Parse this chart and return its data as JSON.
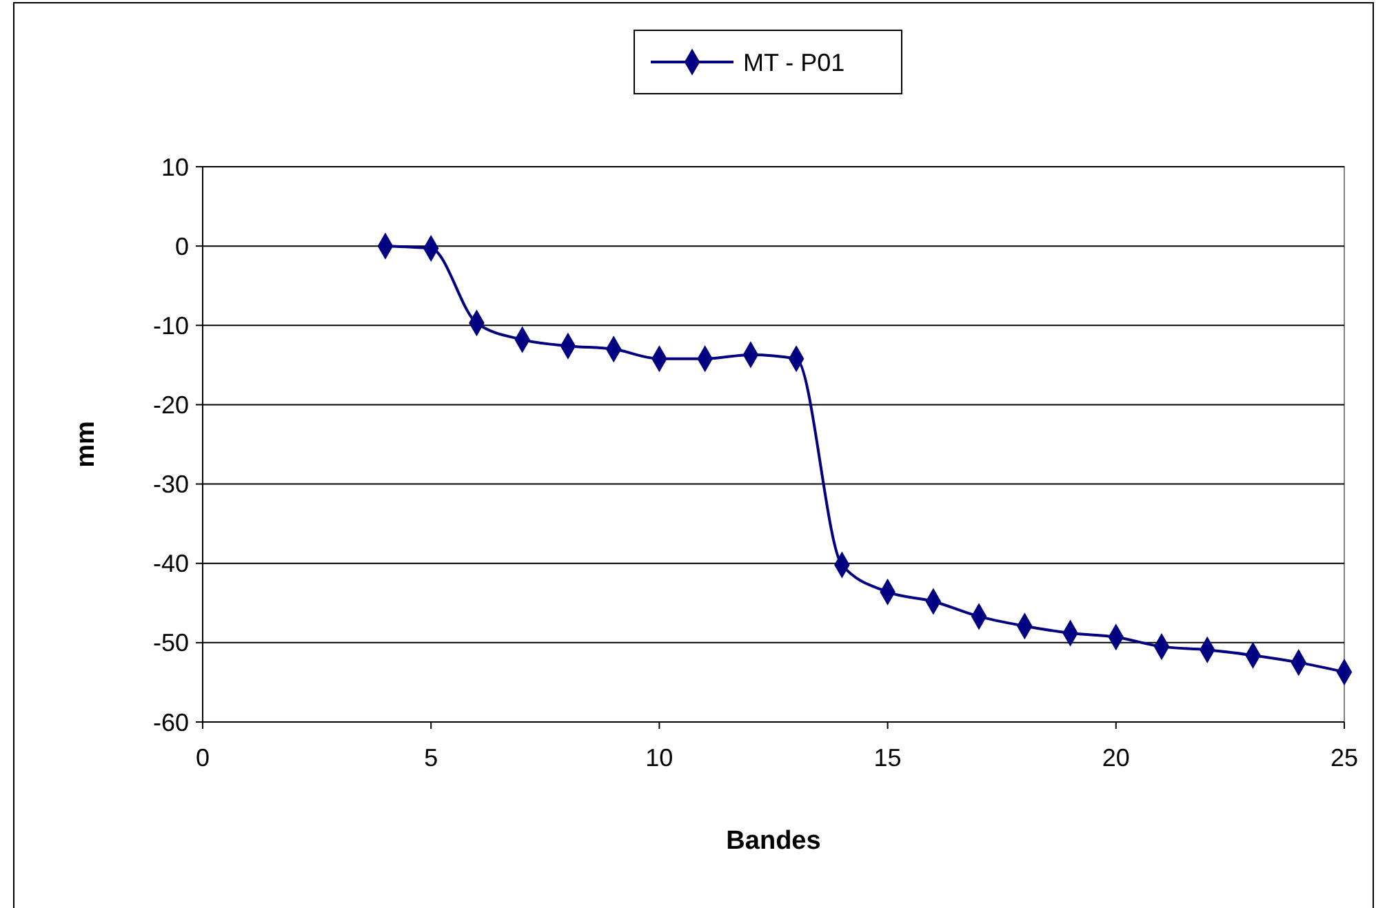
{
  "chart_data": {
    "type": "line",
    "xlabel": "Bandes",
    "ylabel": "mm",
    "xlim": [
      0,
      25
    ],
    "xticks": [
      0,
      5,
      10,
      15,
      20,
      25
    ],
    "ylim": [
      -60,
      10
    ],
    "yticks": [
      -60,
      -50,
      -40,
      -30,
      -20,
      -10,
      0,
      10
    ],
    "grid": "y",
    "legend": "top",
    "marker": "diamond",
    "line_style": "solid",
    "series": [
      {
        "name": "MT - P01",
        "color": "#000080",
        "x": [
          4,
          5,
          6,
          7,
          8,
          9,
          10,
          11,
          12,
          13,
          14,
          15,
          16,
          17,
          18,
          19,
          20,
          21,
          22,
          23,
          24,
          25
        ],
        "values": [
          0,
          -0.3,
          -9.7,
          -11.8,
          -12.6,
          -13,
          -14.2,
          -14.2,
          -13.7,
          -14.2,
          -40.2,
          -43.6,
          -44.8,
          -46.7,
          -47.9,
          -48.8,
          -49.3,
          -50.5,
          -50.9,
          -51.6,
          -52.5,
          -53.7
        ]
      }
    ]
  }
}
